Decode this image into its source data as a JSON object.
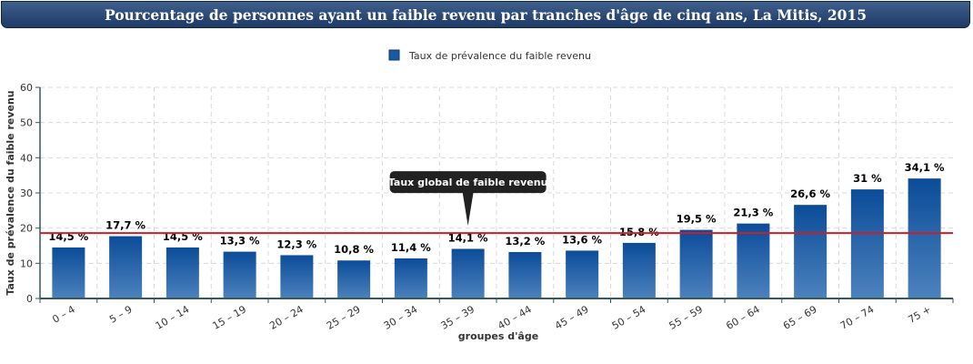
{
  "title": "Pourcentage de personnes ayant un faible revenu par tranches d'âge de cinq ans, La Mitis, 2015",
  "colors": {
    "title_bg": "#2b4a75",
    "bar_top": "#0b4c99",
    "bar_bottom": "#4c82bd",
    "reference_line": "#cc1f26",
    "axis": "#2f5b5b",
    "grid": "#d9d9d9",
    "tooltip_bg": "#222222"
  },
  "chart_data": {
    "type": "bar",
    "title": "Pourcentage de personnes ayant un faible revenu par tranches d'âge de cinq ans, La Mitis, 2015",
    "xlabel": "groupes d'âge",
    "ylabel": "Taux de prévalence du faible revenu",
    "ylim": [
      0,
      60
    ],
    "yticks": [
      0,
      10,
      20,
      30,
      40,
      50,
      60
    ],
    "grid": true,
    "legend_position": "top",
    "categories": [
      "0 – 4",
      "5 – 9",
      "10 – 14",
      "15 – 19",
      "20 – 24",
      "25 – 29",
      "30 – 34",
      "35 – 39",
      "40 – 44",
      "45 – 49",
      "50 – 54",
      "55 – 59",
      "60 – 64",
      "65 – 69",
      "70 – 74",
      "75 +"
    ],
    "series": [
      {
        "name": "Taux de prévalence du faible revenu",
        "values": [
          14.5,
          17.7,
          14.5,
          13.3,
          12.3,
          10.8,
          11.4,
          14.1,
          13.2,
          13.6,
          15.8,
          19.5,
          21.3,
          26.6,
          31,
          34.1
        ],
        "labels": [
          "14,5 %",
          "17,7 %",
          "14,5 %",
          "13,3 %",
          "12,3 %",
          "10,8 %",
          "11,4 %",
          "14,1 %",
          "13,2 %",
          "13,6 %",
          "15,8 %",
          "19,5 %",
          "21,3 %",
          "26,6 %",
          "31 %",
          "34,1 %"
        ]
      }
    ],
    "reference_line": {
      "value": 18.6,
      "label": "Taux global de faible revenu"
    }
  }
}
